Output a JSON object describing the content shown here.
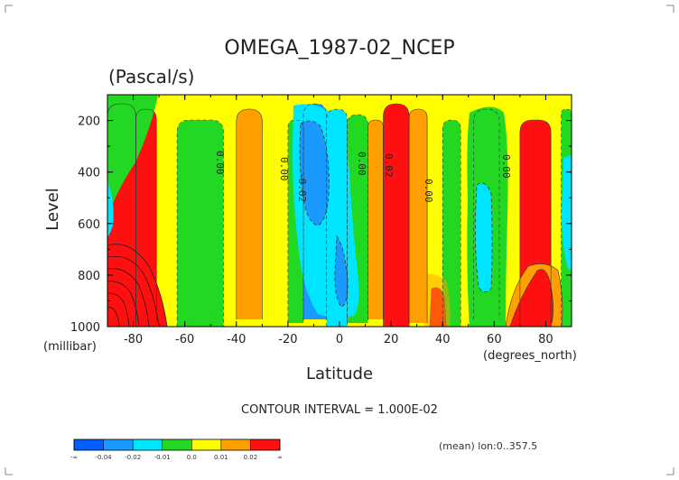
{
  "chart_data": {
    "type": "heatmap",
    "title": "OMEGA_1987-02_NCEP",
    "subtitle": "(Pascal/s)",
    "xlabel": "Latitude",
    "ylabel": "Level",
    "x_units": "(degrees_north)",
    "y_units": "(millibar)",
    "xlim": [
      -90,
      90
    ],
    "ylim": [
      1000,
      100
    ],
    "x_ticks": [
      "-80",
      "-60",
      "-40",
      "-20",
      "0",
      "20",
      "40",
      "60",
      "80"
    ],
    "y_ticks": [
      "200",
      "400",
      "600",
      "800",
      "1000"
    ],
    "contour_labels": [
      "0.00",
      "0.00",
      "-0.02",
      "0.00",
      "0.02",
      "0.00",
      "0.00"
    ],
    "contour_interval_text": "CONTOUR INTERVAL = 1.000E-02",
    "footnote": "(mean) lon:0..357.5",
    "colorbar": {
      "labels": [
        "-∞",
        "-0.04",
        "-0.02",
        "-0.01",
        "0.0",
        "0.01",
        "0.02",
        "∞"
      ],
      "colors": [
        "#0060ff",
        "#1a9aff",
        "#00e5ff",
        "#22d822",
        "#ffff00",
        "#ffa000",
        "#ff1010"
      ]
    },
    "bands": [
      {
        "x": [
          -90,
          -79
        ],
        "value": 0.03
      },
      {
        "x": [
          -79,
          -71
        ],
        "value": 0.02
      },
      {
        "x": [
          -71,
          -63
        ],
        "value": 0.005
      },
      {
        "x": [
          -63,
          -45
        ],
        "value": -0.005
      },
      {
        "x": [
          -45,
          -40
        ],
        "value": 0.005
      },
      {
        "x": [
          -40,
          -30
        ],
        "value": 0.015
      },
      {
        "x": [
          -30,
          -20
        ],
        "value": 0.005
      },
      {
        "x": [
          -20,
          -14
        ],
        "value": -0.005
      },
      {
        "x": [
          -14,
          -5
        ],
        "value": -0.03
      },
      {
        "x": [
          -5,
          3
        ],
        "value": -0.015
      },
      {
        "x": [
          3,
          11
        ],
        "value": -0.005
      },
      {
        "x": [
          11,
          17
        ],
        "value": 0.015
      },
      {
        "x": [
          17,
          27
        ],
        "value": 0.03
      },
      {
        "x": [
          27,
          34
        ],
        "value": 0.015
      },
      {
        "x": [
          34,
          40
        ],
        "value": 0.005
      },
      {
        "x": [
          40,
          47
        ],
        "value": -0.005
      },
      {
        "x": [
          47,
          52
        ],
        "value": 0.005
      },
      {
        "x": [
          52,
          62
        ],
        "value": -0.015
      },
      {
        "x": [
          62,
          70
        ],
        "value": 0.005
      },
      {
        "x": [
          70,
          82
        ],
        "value": 0.03
      },
      {
        "x": [
          82,
          86
        ],
        "value": 0.005
      },
      {
        "x": [
          86,
          90
        ],
        "value": -0.005
      }
    ]
  }
}
